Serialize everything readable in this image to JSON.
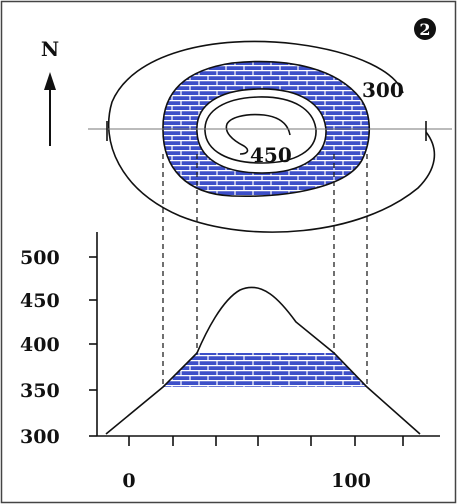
{
  "figure": {
    "badge": "❷",
    "north_label": "N",
    "contour_labels": {
      "outer": "300",
      "inner": "450"
    },
    "profile": {
      "y_ticks": [
        "500",
        "450",
        "400",
        "350",
        "300"
      ],
      "x_ticks": [
        "0",
        "100"
      ]
    }
  },
  "colors": {
    "rock_fill": "#3d4fc8",
    "rock_brick": "#ffffff",
    "line": "#111111",
    "border": "#444444"
  }
}
